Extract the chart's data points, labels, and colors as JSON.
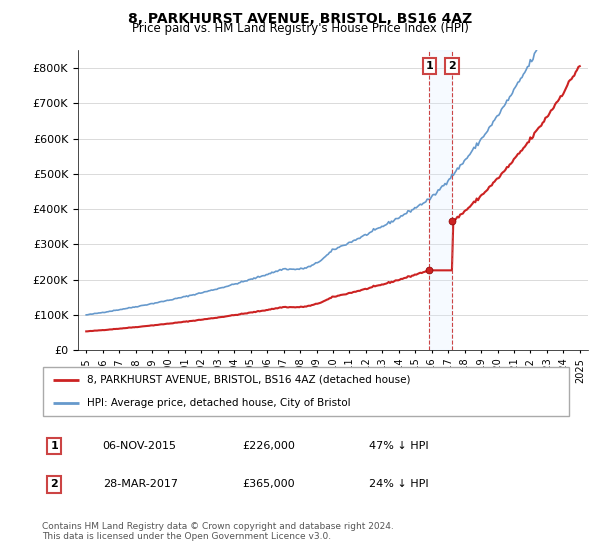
{
  "title": "8, PARKHURST AVENUE, BRISTOL, BS16 4AZ",
  "subtitle": "Price paid vs. HM Land Registry's House Price Index (HPI)",
  "legend_line1": "8, PARKHURST AVENUE, BRISTOL, BS16 4AZ (detached house)",
  "legend_line2": "HPI: Average price, detached house, City of Bristol",
  "table_row1": [
    "1",
    "06-NOV-2015",
    "£226,000",
    "47% ↓ HPI"
  ],
  "table_row2": [
    "2",
    "28-MAR-2017",
    "£365,000",
    "24% ↓ HPI"
  ],
  "footer": "Contains HM Land Registry data © Crown copyright and database right 2024.\nThis data is licensed under the Open Government Licence v3.0.",
  "sale1_date": 2015.85,
  "sale1_price": 226000,
  "sale2_date": 2017.24,
  "sale2_price": 365000,
  "hpi_color": "#6699cc",
  "price_color": "#cc2222",
  "shade_color": "#ddeeff",
  "ylim": [
    0,
    850000
  ],
  "xlim_start": 1994.5,
  "xlim_end": 2025.5
}
